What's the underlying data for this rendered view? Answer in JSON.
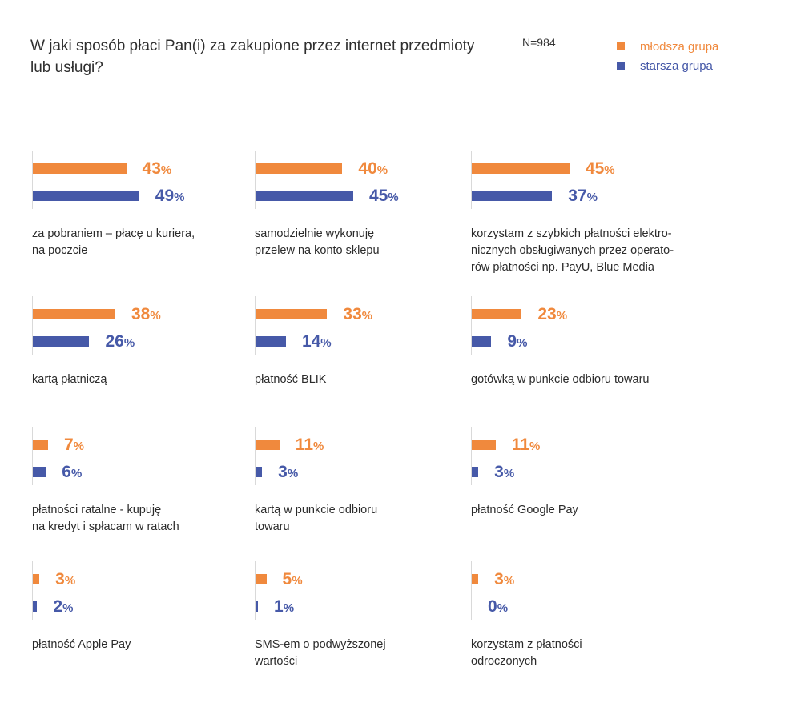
{
  "colors": {
    "young": "#f0893d",
    "old": "#4659a8"
  },
  "chart_data": {
    "type": "bar",
    "title": "W jaki sposób płaci Pan(i) za zakupione przez internet przedmioty lub usługi?",
    "note": "N=984",
    "legend_position": "top-right",
    "unit": "%",
    "ylim": [
      0,
      100
    ],
    "series": [
      {
        "name": "młodsza grupa",
        "color": "#f0893d",
        "values": [
          43,
          40,
          45,
          38,
          33,
          23,
          7,
          11,
          11,
          3,
          5,
          3
        ]
      },
      {
        "name": "starsza grupa",
        "color": "#4659a8",
        "values": [
          49,
          45,
          37,
          26,
          14,
          9,
          6,
          3,
          3,
          2,
          1,
          0
        ]
      }
    ],
    "categories": [
      "za pobraniem – płacę u kuriera,\nna poczcie",
      "samodzielnie wykonuję\nprzelew na konto sklepu",
      "korzystam z szybkich płatności elektro-\nnicznych obsługiwanych przez operato-\nrów płatności np. PayU, Blue Media",
      "kartą płatniczą",
      "płatność BLIK",
      "gotówką w punkcie odbioru towaru",
      "płatności ratalne - kupuję\nna kredyt i spłacam w ratach",
      "kartą w punkcie odbioru\ntowaru",
      "płatność Google Pay",
      "płatność Apple Pay",
      "SMS-em o podwyższonej\nwartości",
      "korzystam z płatności\nodroczonych"
    ]
  }
}
